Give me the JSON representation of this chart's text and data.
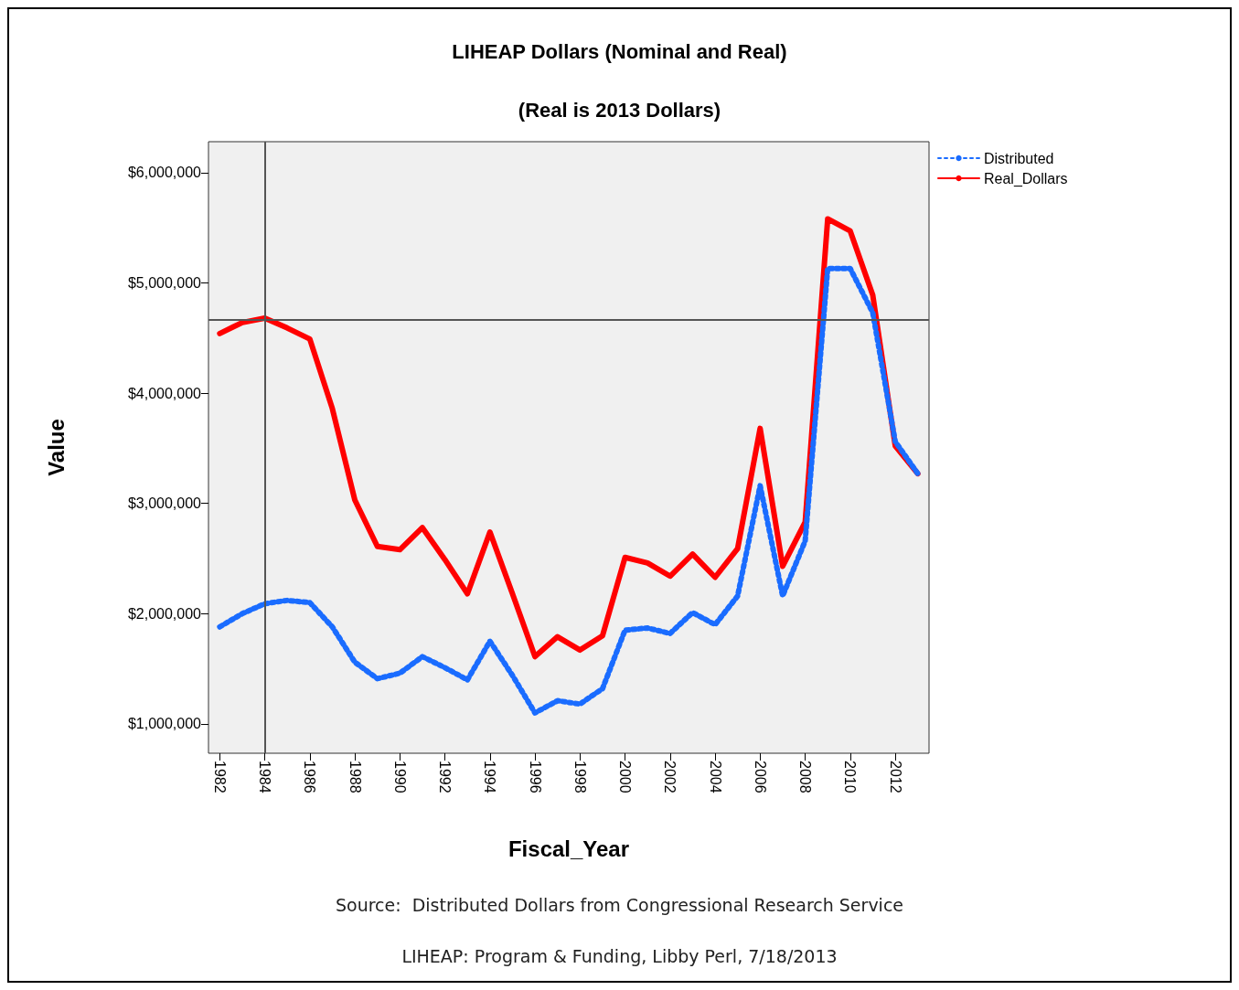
{
  "chart_data": {
    "type": "line",
    "title": "LIHEAP Dollars (Nominal and Real)",
    "subtitle": "(Real is 2013 Dollars)",
    "xlabel": "Fiscal_Year",
    "ylabel": "Value",
    "categories": [
      "1982",
      null,
      "1984",
      null,
      "1986",
      null,
      "1988",
      null,
      "1990",
      null,
      "1992",
      null,
      "1994",
      null,
      "1996",
      null,
      "1998",
      null,
      "2000",
      null,
      "2002",
      null,
      "2004",
      null,
      "2006",
      null,
      "2008",
      null,
      "2010",
      null,
      "2012",
      null
    ],
    "series": [
      {
        "name": "Distributed",
        "color": "#1a6cff",
        "line_style": "dotted",
        "values": [
          1880000,
          2000000,
          2090000,
          2120000,
          2100000,
          1880000,
          1560000,
          1410000,
          1460000,
          1610000,
          1510000,
          1400000,
          1750000,
          1440000,
          1100000,
          1210000,
          1180000,
          1320000,
          1850000,
          1870000,
          1820000,
          2010000,
          1900000,
          2160000,
          3160000,
          2160000,
          2660000,
          5130000,
          5130000,
          4730000,
          3560000,
          3270000
        ]
      },
      {
        "name": "Real_Dollars",
        "color": "#ff0000",
        "line_style": "solid",
        "values": [
          4540000,
          4640000,
          4680000,
          4590000,
          4490000,
          3860000,
          3030000,
          2610000,
          2580000,
          2780000,
          2490000,
          2180000,
          2740000,
          2180000,
          1610000,
          1790000,
          1670000,
          1800000,
          2510000,
          2460000,
          2340000,
          2540000,
          2330000,
          2590000,
          3680000,
          2430000,
          2830000,
          5580000,
          5470000,
          4890000,
          3520000,
          3270000
        ]
      }
    ],
    "ylim": [
      734000,
      6280000
    ],
    "yticks": [
      {
        "value": 1000000,
        "label": "$1,000,000"
      },
      {
        "value": 2000000,
        "label": "$2,000,000"
      },
      {
        "value": 3000000,
        "label": "$3,000,000"
      },
      {
        "value": 4000000,
        "label": "$4,000,000"
      },
      {
        "value": 5000000,
        "label": "$5,000,000"
      },
      {
        "value": 6000000,
        "label": "$6,000,000"
      }
    ],
    "ref_lines": [
      {
        "axis": "y",
        "value": 4668000,
        "color": "#555555"
      },
      {
        "axis": "x",
        "value": "1984",
        "color": "#555555"
      }
    ],
    "legend": "top right",
    "marker": "none",
    "grid": false,
    "annotations": [
      "Source:  Distributed Dollars from Congressional Research Service",
      "LIHEAP: Program & Funding, Libby Perl, 7/18/2013"
    ]
  }
}
